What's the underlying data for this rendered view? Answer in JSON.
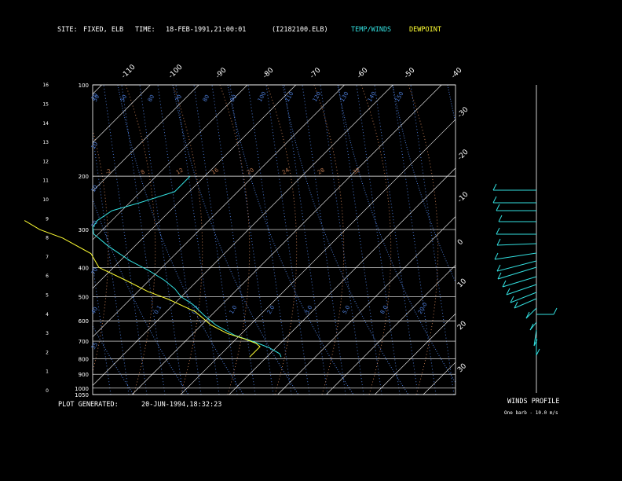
{
  "header": {
    "site_label": "SITE:",
    "site_value": "FIXED, ELB",
    "time_label": "TIME:",
    "time_value": "18-FEB-1991,21:00:01",
    "file": "(I2182100.ELB)",
    "legend_temp": "TEMP/WINDS",
    "legend_dew": "DEWPOINT"
  },
  "footer": {
    "plot_generated_label": "PLOT GENERATED:",
    "plot_generated_value": "20-JUN-1994,18:32:23",
    "winds_title": "WINDS PROFILE",
    "barb_note": "One barb - 10.0 m/s"
  },
  "colors": {
    "background": "#000000",
    "frame": "#ffffff",
    "temperature": "#33e0e0",
    "dewpoint": "#ffff33",
    "mixing_ratio": "#4b7bd6",
    "dry_adiabat": "#c07a50",
    "moist_adiabat": "#4b7bd6",
    "isotherm": "#ffffff"
  },
  "chart_data": {
    "type": "line",
    "title": "",
    "pressure_levels": [
      100,
      200,
      300,
      400,
      500,
      600,
      700,
      800,
      900,
      1000,
      1050
    ],
    "height_km_ticks": [
      "0",
      "1",
      "2",
      "3",
      "4",
      "5",
      "6",
      "7",
      "8",
      "9",
      "10",
      "11",
      "12",
      "13",
      "14",
      "15",
      "16"
    ],
    "isotherm_top_labels": [
      "-110",
      "-100",
      "-90",
      "-80",
      "-70",
      "-60",
      "-50",
      "-40"
    ],
    "isotherm_right_labels": [
      "-30",
      "-20",
      "-10",
      "0",
      "10",
      "20",
      "30"
    ],
    "dry_adiabat_labels": [
      "-2",
      "8",
      "12",
      "16",
      "20",
      "24",
      "28",
      "32"
    ],
    "mixing_ratio_upper_labels": [
      "50",
      "50",
      "80",
      "70",
      "80",
      "90",
      "100",
      "110",
      "120",
      "130",
      "140",
      "150"
    ],
    "mixing_ratio_left_labels": [
      "70",
      "10",
      "10",
      "70",
      "70",
      "40",
      "35"
    ],
    "mixing_ratio_lower_labels": [
      "0.1",
      "0.2",
      "1.0",
      "2.0",
      "3.0",
      "5.0",
      "8.0",
      "20.0"
    ],
    "series": [
      {
        "name": "TEMP/WINDS",
        "pressure_hPa": [
          790,
          770,
          735,
          705,
          670,
          620,
          575,
          530,
          500,
          470,
          440,
          410,
          380,
          340,
          310,
          295,
          280,
          260,
          245,
          225,
          200
        ],
        "temperature_C": [
          13,
          12,
          8.5,
          4.5,
          -1,
          -7,
          -11.5,
          -16,
          -20,
          -23,
          -27,
          -32,
          -38,
          -45.5,
          -51,
          -52.5,
          -53,
          -52,
          -48,
          -43,
          -43
        ]
      },
      {
        "name": "DEWPOINT",
        "pressure_hPa": [
          790,
          770,
          730,
          712,
          690,
          660,
          620,
          560,
          510,
          480,
          440,
          400,
          360,
          320,
          300,
          280
        ],
        "dewpoint_C": [
          6.5,
          6.5,
          6.5,
          5,
          2,
          -3,
          -8,
          -14,
          -22,
          -28,
          -35,
          -43,
          -47.5,
          -56.5,
          -63,
          -68
        ]
      }
    ],
    "winds_profile": {
      "units": "m/s",
      "barb_value": 10.0
    }
  }
}
